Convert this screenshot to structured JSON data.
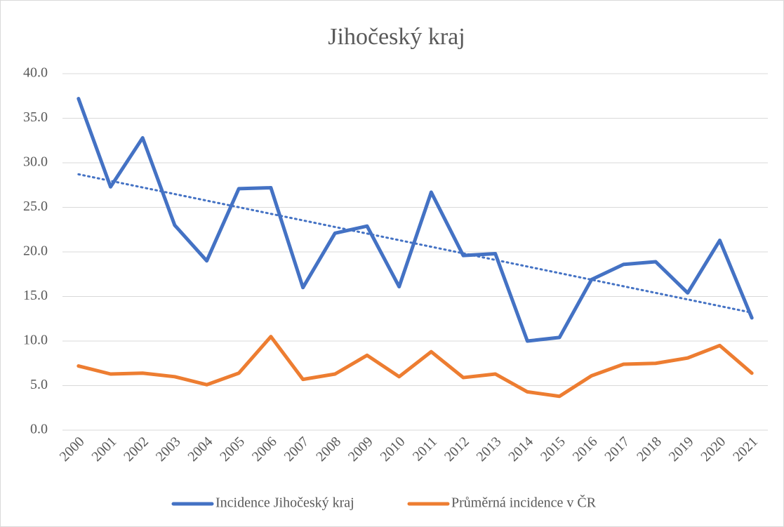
{
  "chart_data": {
    "type": "line",
    "title": "Jihočeský kraj",
    "categories": [
      "2000",
      "2001",
      "2002",
      "2003",
      "2004",
      "2005",
      "2006",
      "2007",
      "2008",
      "2009",
      "2010",
      "2011",
      "2012",
      "2013",
      "2014",
      "2015",
      "2016",
      "2017",
      "2018",
      "2019",
      "2020",
      "2021"
    ],
    "series": [
      {
        "name": "Incidence Jihočeský kraj",
        "color": "#4472c4",
        "trendline": "linear",
        "values": [
          37.2,
          27.3,
          32.8,
          23.0,
          19.0,
          27.1,
          27.2,
          16.0,
          22.1,
          22.9,
          16.1,
          26.7,
          19.6,
          19.8,
          10.0,
          10.4,
          16.9,
          18.6,
          18.9,
          15.4,
          21.3,
          12.6
        ]
      },
      {
        "name": "Průměrná incidence v ČR",
        "color": "#ed7d31",
        "values": [
          7.2,
          6.3,
          6.4,
          6.0,
          5.1,
          6.4,
          10.5,
          5.7,
          6.3,
          8.4,
          6.0,
          8.8,
          5.9,
          6.3,
          4.3,
          3.8,
          6.1,
          7.4,
          7.5,
          8.1,
          9.5,
          6.4
        ]
      }
    ],
    "ylim": [
      0,
      40
    ],
    "yticks": [
      {
        "value": 0,
        "label": "0.0"
      },
      {
        "value": 5,
        "label": "5.0"
      },
      {
        "value": 10,
        "label": "10.0"
      },
      {
        "value": 15,
        "label": "15.0"
      },
      {
        "value": 20,
        "label": "20.0"
      },
      {
        "value": 25,
        "label": "25.0"
      },
      {
        "value": 30,
        "label": "30.0"
      },
      {
        "value": 35,
        "label": "35.0"
      },
      {
        "value": 40,
        "label": "40.0"
      }
    ],
    "grid": true,
    "legend": "bottom"
  }
}
